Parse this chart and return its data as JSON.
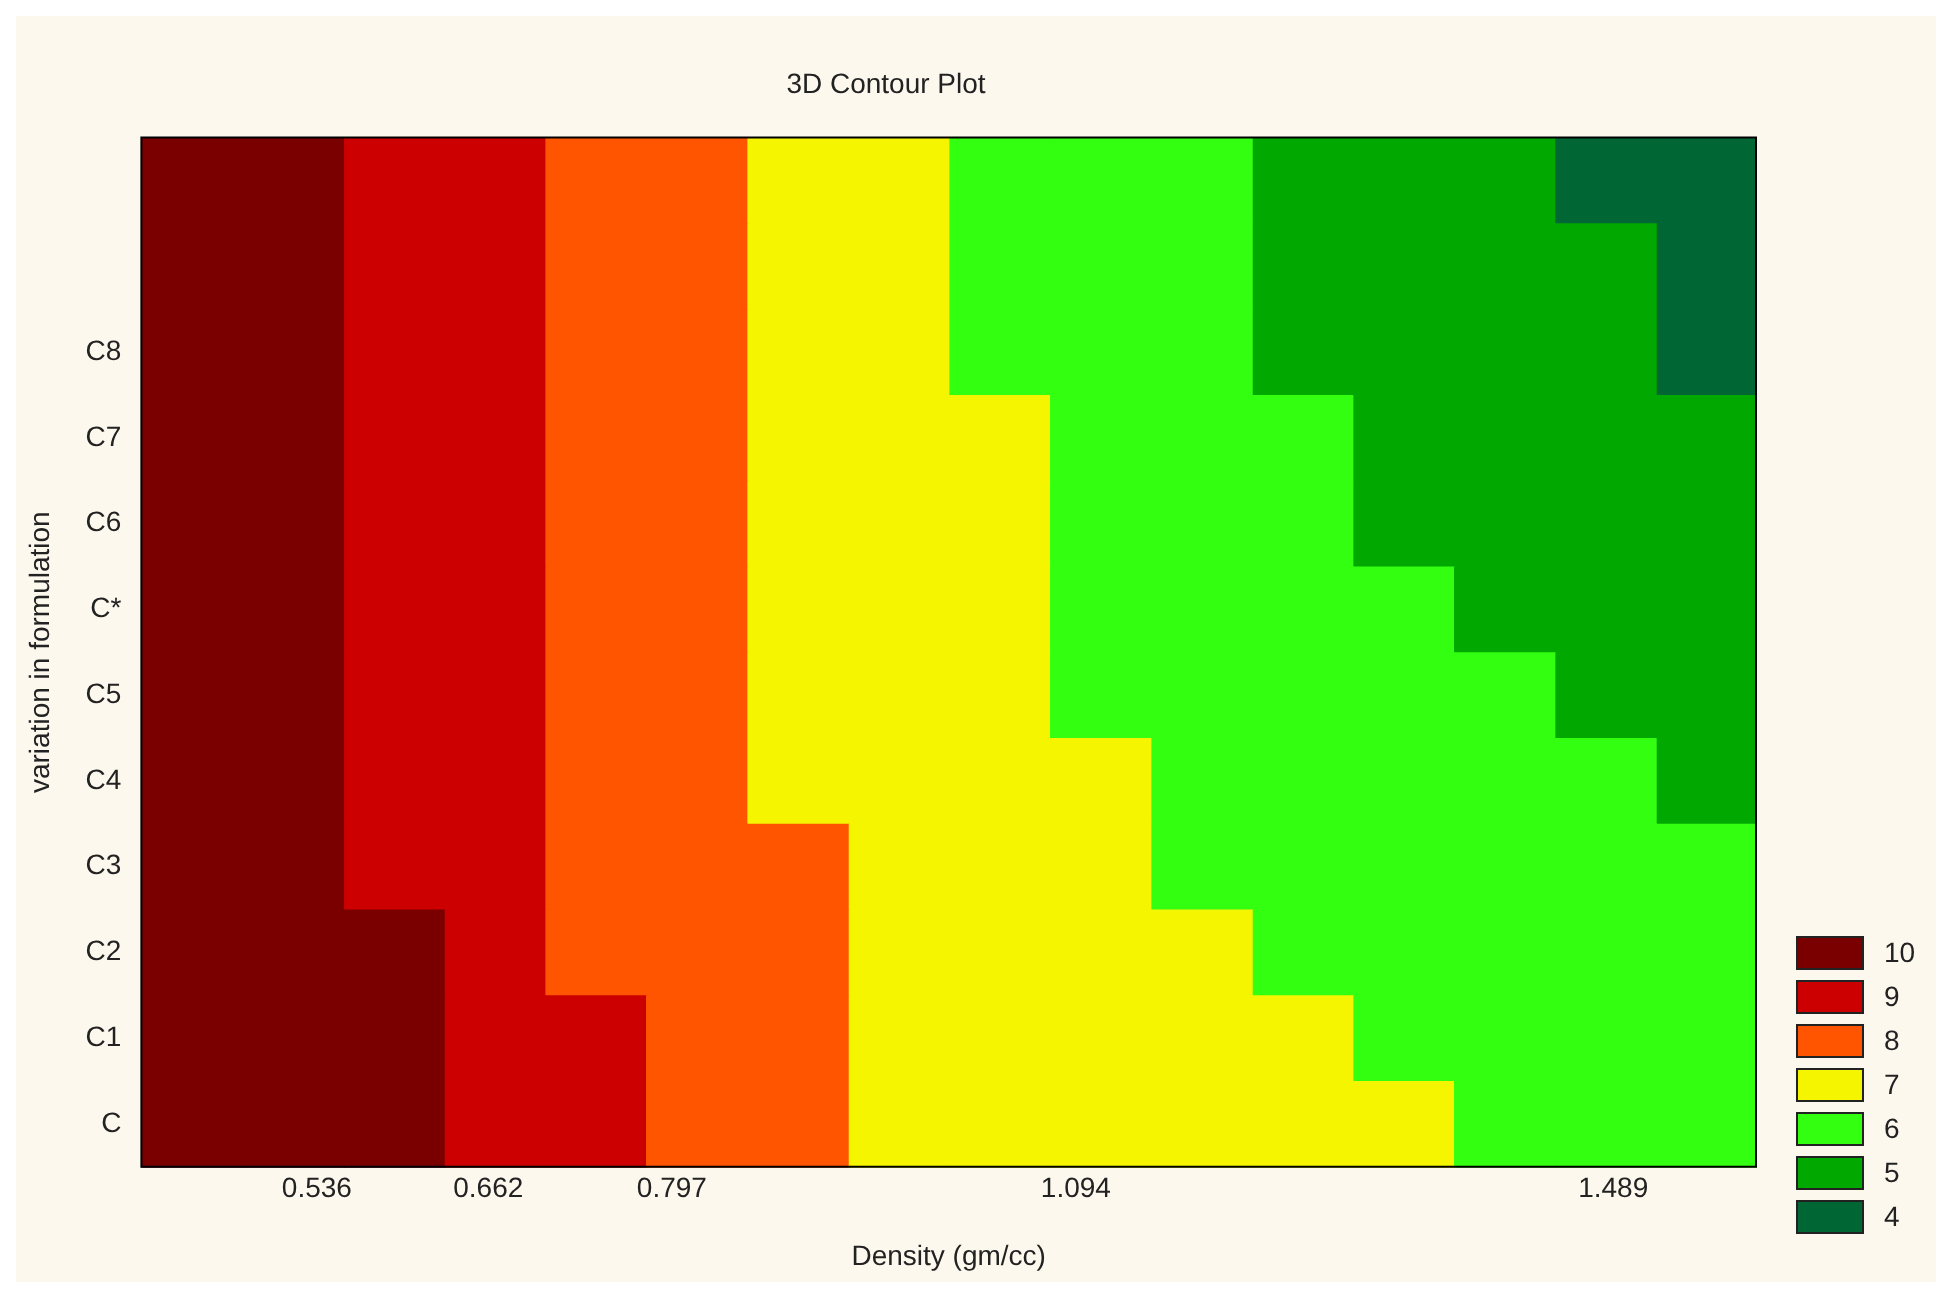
{
  "chart_data": {
    "type": "heatmap",
    "title": "3D Contour Plot",
    "xlabel": "Density (gm/cc)",
    "ylabel": "variation in formulation",
    "x": [
      0.444,
      0.519,
      0.593,
      0.667,
      0.741,
      0.815,
      0.89,
      0.964,
      1.038,
      1.112,
      1.187,
      1.261,
      1.335,
      1.409,
      1.484,
      1.558
    ],
    "xlim": [
      0.407,
      1.594
    ],
    "xticks": [
      0.536,
      0.662,
      0.797,
      1.094,
      1.489
    ],
    "y_categories": [
      null,
      null,
      "C8",
      "C7",
      "C6",
      "C*",
      "C5",
      "C4",
      "C3",
      "C2",
      "C1",
      "C"
    ],
    "cells": [
      [
        10,
        10,
        9,
        9,
        8,
        8,
        7,
        7,
        6,
        6,
        6,
        5,
        5,
        5,
        4,
        4
      ],
      [
        10,
        10,
        9,
        9,
        8,
        8,
        7,
        7,
        6,
        6,
        6,
        5,
        5,
        5,
        5,
        4
      ],
      [
        10,
        10,
        9,
        9,
        8,
        8,
        7,
        7,
        6,
        6,
        6,
        5,
        5,
        5,
        5,
        4
      ],
      [
        10,
        10,
        9,
        9,
        8,
        8,
        7,
        7,
        7,
        6,
        6,
        6,
        5,
        5,
        5,
        5
      ],
      [
        10,
        10,
        9,
        9,
        8,
        8,
        7,
        7,
        7,
        6,
        6,
        6,
        5,
        5,
        5,
        5
      ],
      [
        10,
        10,
        9,
        9,
        8,
        8,
        7,
        7,
        7,
        6,
        6,
        6,
        6,
        5,
        5,
        5
      ],
      [
        10,
        10,
        9,
        9,
        8,
        8,
        7,
        7,
        7,
        6,
        6,
        6,
        6,
        6,
        5,
        5
      ],
      [
        10,
        10,
        9,
        9,
        8,
        8,
        7,
        7,
        7,
        7,
        6,
        6,
        6,
        6,
        6,
        5
      ],
      [
        10,
        10,
        9,
        9,
        8,
        8,
        8,
        7,
        7,
        7,
        6,
        6,
        6,
        6,
        6,
        6
      ],
      [
        10,
        10,
        10,
        9,
        8,
        8,
        8,
        7,
        7,
        7,
        7,
        6,
        6,
        6,
        6,
        6
      ],
      [
        10,
        10,
        10,
        9,
        9,
        8,
        8,
        7,
        7,
        7,
        7,
        7,
        6,
        6,
        6,
        6
      ],
      [
        10,
        10,
        10,
        9,
        9,
        8,
        8,
        7,
        7,
        7,
        7,
        7,
        7,
        6,
        6,
        6
      ]
    ],
    "clim": [
      3.5,
      10.5
    ],
    "cticks": [
      10,
      9,
      8,
      7,
      6,
      5,
      4
    ],
    "colors": [
      "#7a0000",
      "#cc0000",
      "#ff5500",
      "#f5f500",
      "#33ff11",
      "#00a800",
      "#006633"
    ]
  }
}
